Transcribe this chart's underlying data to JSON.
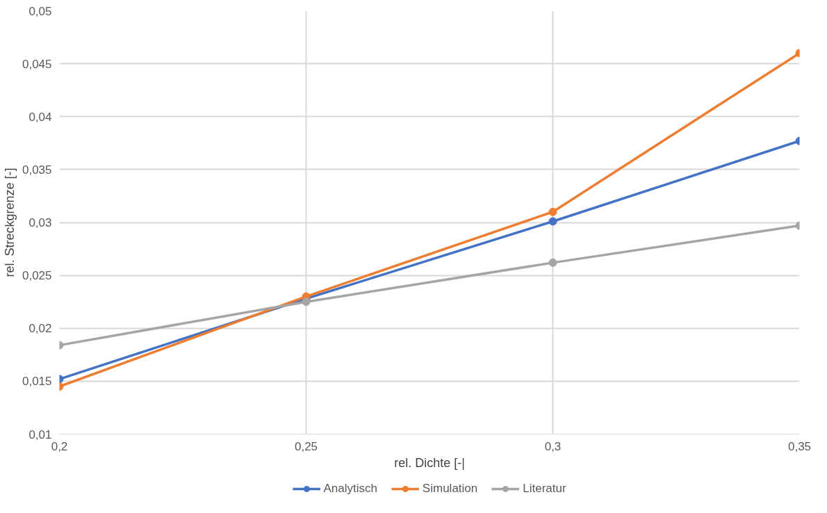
{
  "chart_data": {
    "type": "line",
    "xlabel": "rel. Dichte [-|",
    "ylabel": "rel. Streckgrenze [-]",
    "x": [
      0.2,
      0.25,
      0.3,
      0.35
    ],
    "series": [
      {
        "name": "Analytisch",
        "color": "#4472c4",
        "values": [
          0.0152,
          0.0228,
          0.0301,
          0.0377
        ]
      },
      {
        "name": "Simulation",
        "color": "#ed7d31",
        "values": [
          0.0145,
          0.023,
          0.031,
          0.046
        ]
      },
      {
        "name": "Literatur",
        "color": "#a5a5a5",
        "values": [
          0.0184,
          0.0225,
          0.0262,
          0.0297
        ]
      }
    ],
    "xlim": [
      0.2,
      0.35
    ],
    "xticks": [
      {
        "value": 0.2,
        "label": "0,2"
      },
      {
        "value": 0.25,
        "label": "0,25"
      },
      {
        "value": 0.3,
        "label": "0,3"
      },
      {
        "value": 0.35,
        "label": "0,35"
      }
    ],
    "ylim": [
      0.01,
      0.05
    ],
    "yticks": [
      {
        "value": 0.01,
        "label": "0,01"
      },
      {
        "value": 0.015,
        "label": "0,015"
      },
      {
        "value": 0.02,
        "label": "0,02"
      },
      {
        "value": 0.025,
        "label": "0,025"
      },
      {
        "value": 0.03,
        "label": "0,03"
      },
      {
        "value": 0.035,
        "label": "0,035"
      },
      {
        "value": 0.04,
        "label": "0,04"
      },
      {
        "value": 0.045,
        "label": "0,045"
      },
      {
        "value": 0.05,
        "label": "0,05"
      }
    ],
    "grid": true,
    "legend": "bottom",
    "marker": "circle",
    "line_style": "solid"
  }
}
